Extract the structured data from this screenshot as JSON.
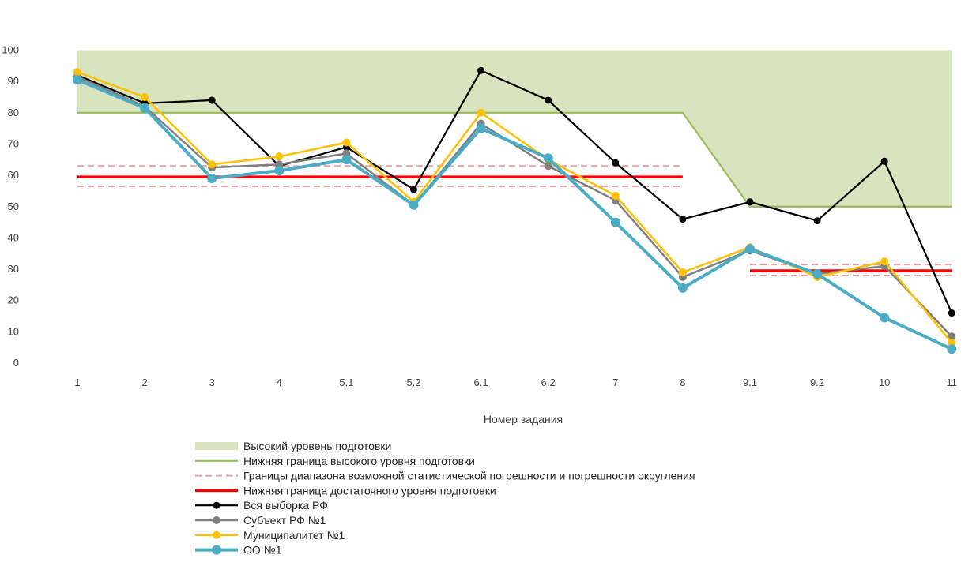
{
  "chart_data": {
    "type": "line",
    "xlabel": "Номер задания",
    "ylabel": "",
    "categories": [
      "1",
      "2",
      "3",
      "4",
      "5.1",
      "5.2",
      "6.1",
      "6.2",
      "7",
      "8",
      "9.1",
      "9.2",
      "10",
      "11"
    ],
    "yticks": [
      "0",
      "10",
      "20",
      "30",
      "40",
      "50",
      "60",
      "70",
      "80",
      "90",
      "100"
    ],
    "ylim": [
      0,
      100
    ],
    "grid": false,
    "legend_position": "bottom",
    "bands": {
      "high_level_area": {
        "name": "Высокий уровень подготовки",
        "color": "#d7e4bd",
        "top": 100,
        "lower": [
          80,
          80,
          80,
          80,
          80,
          80,
          80,
          80,
          80,
          80,
          50,
          50,
          50,
          50
        ]
      },
      "high_level_lower_bound": {
        "name": "Нижняя граница высокого уровня подготовки",
        "color": "#9bbb59"
      },
      "error_range": {
        "name": "Границы диапазона возможной статистической погрешности и погрешности округления",
        "color": "#e6a0a0",
        "segments": [
          {
            "from": "1",
            "to": "8",
            "upper": 63,
            "lower": 56.5
          },
          {
            "from": "9.1",
            "to": "11",
            "upper": 31.5,
            "lower": 28
          }
        ]
      },
      "sufficient_level_lower_bound": {
        "name": "Нижняя граница достаточного уровня подготовки",
        "color": "#ff0000",
        "segments": [
          {
            "from": "1",
            "to": "8",
            "value": 59.5
          },
          {
            "from": "9.1",
            "to": "11",
            "value": 29.5
          }
        ]
      }
    },
    "series": [
      {
        "name": "Вся выборка РФ",
        "color": "#000000",
        "width": 2.2,
        "marker": 4.5,
        "values": [
          92,
          83,
          84,
          63,
          69,
          55.5,
          93.5,
          84,
          64,
          46,
          51.5,
          45.5,
          64.5,
          16
        ]
      },
      {
        "name": "Субъект РФ №1",
        "color": "#7f7f7f",
        "width": 2.5,
        "marker": 5,
        "values": [
          91.5,
          82,
          62.5,
          63.5,
          67,
          50.5,
          76.5,
          63,
          52,
          27.5,
          36,
          28.5,
          31,
          8.5
        ]
      },
      {
        "name": "Муниципалитет №1",
        "color": "#ffc000",
        "width": 2.5,
        "marker": 5,
        "values": [
          93,
          85,
          63.5,
          66,
          70.5,
          51.5,
          80,
          65,
          53.5,
          29,
          37,
          27.5,
          32.5,
          6.5
        ]
      },
      {
        "name": "ОО №1",
        "color": "#4bacc6",
        "width": 4,
        "marker": 6,
        "values": [
          90.5,
          81.5,
          59,
          61.5,
          65,
          50.5,
          75,
          65.5,
          45,
          24,
          36.5,
          28.5,
          14.5,
          4.5
        ]
      }
    ]
  }
}
